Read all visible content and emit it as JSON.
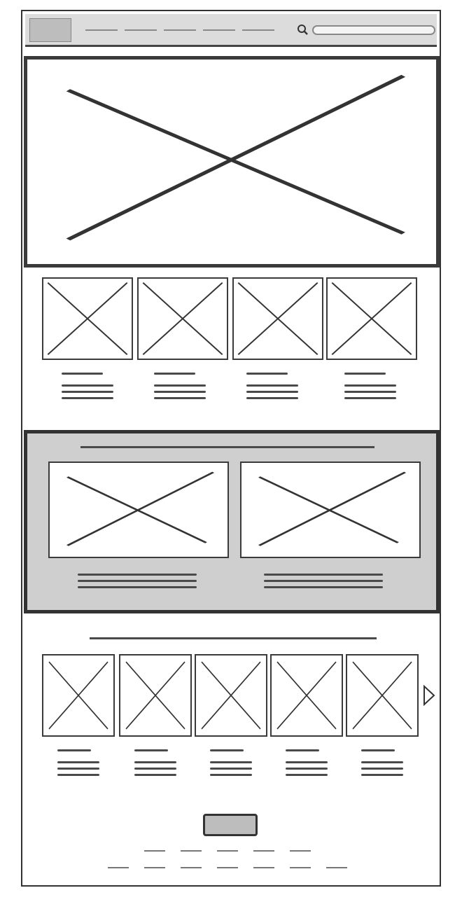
{
  "header": {
    "logo": "logo-placeholder",
    "search": {
      "icon": "search-icon",
      "value": ""
    }
  },
  "hero": {
    "image": "image-placeholder"
  },
  "row1": {
    "count": 4,
    "image": "image-placeholder"
  },
  "featured": {
    "count": 2,
    "image": "image-placeholder"
  },
  "carousel": {
    "count": 5,
    "image": "image-placeholder",
    "next_icon": "chevron-right-icon"
  },
  "cta": {
    "label": ""
  },
  "colors": {
    "header_bg": "#dcdcdc",
    "feature_bg": "#cfcfcf",
    "stroke": "#333333"
  }
}
